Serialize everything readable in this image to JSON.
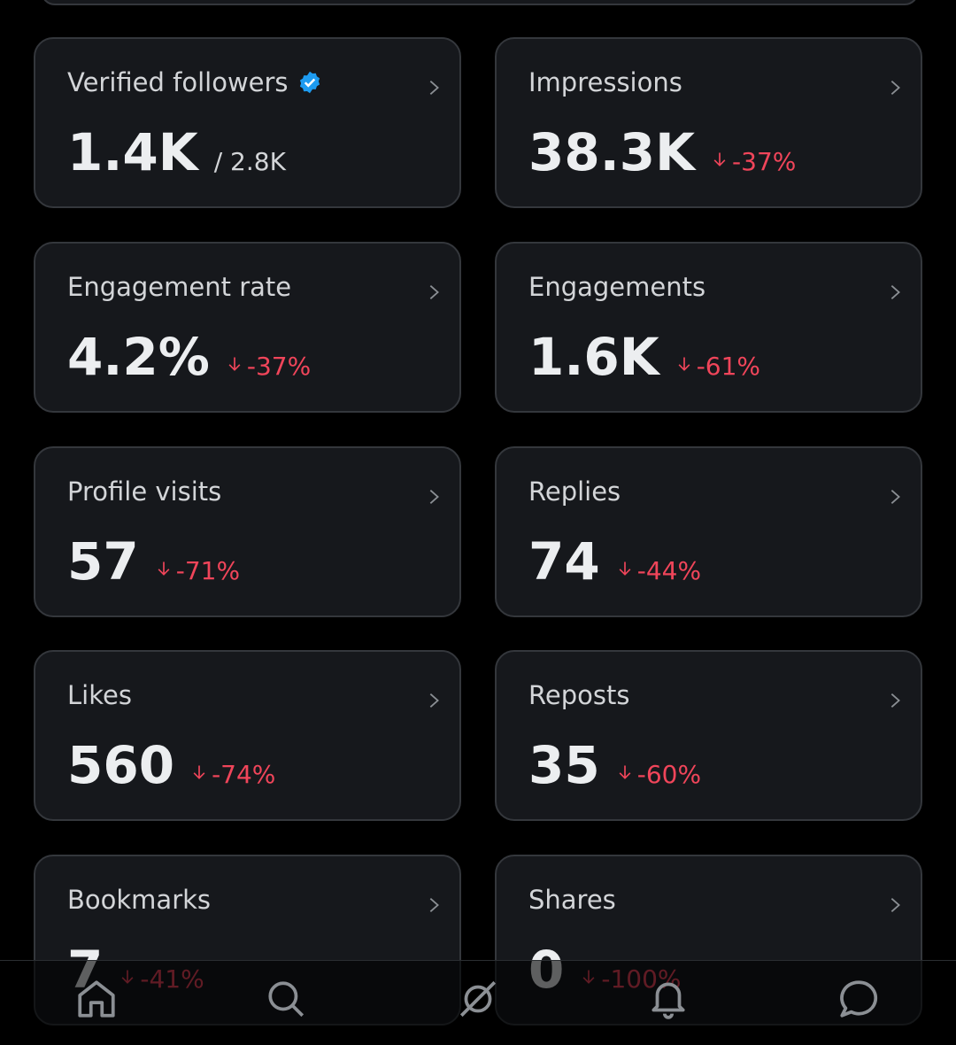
{
  "cards": [
    {
      "label": "Verified followers",
      "verified": true,
      "value": "1.4K",
      "total": "/ 2.8K"
    },
    {
      "label": "Impressions",
      "value": "38.3K",
      "change": "-37%"
    },
    {
      "label": "Engagement rate",
      "value": "4.2%",
      "change": "-37%"
    },
    {
      "label": "Engagements",
      "value": "1.6K",
      "change": "-61%"
    },
    {
      "label": "Profile visits",
      "value": "57",
      "change": "-71%"
    },
    {
      "label": "Replies",
      "value": "74",
      "change": "-44%"
    },
    {
      "label": "Likes",
      "value": "560",
      "change": "-74%"
    },
    {
      "label": "Reposts",
      "value": "35",
      "change": "-60%"
    },
    {
      "label": "Bookmarks",
      "value": "7",
      "change": "-41%"
    },
    {
      "label": "Shares",
      "value": "0",
      "change": "-100%"
    }
  ]
}
